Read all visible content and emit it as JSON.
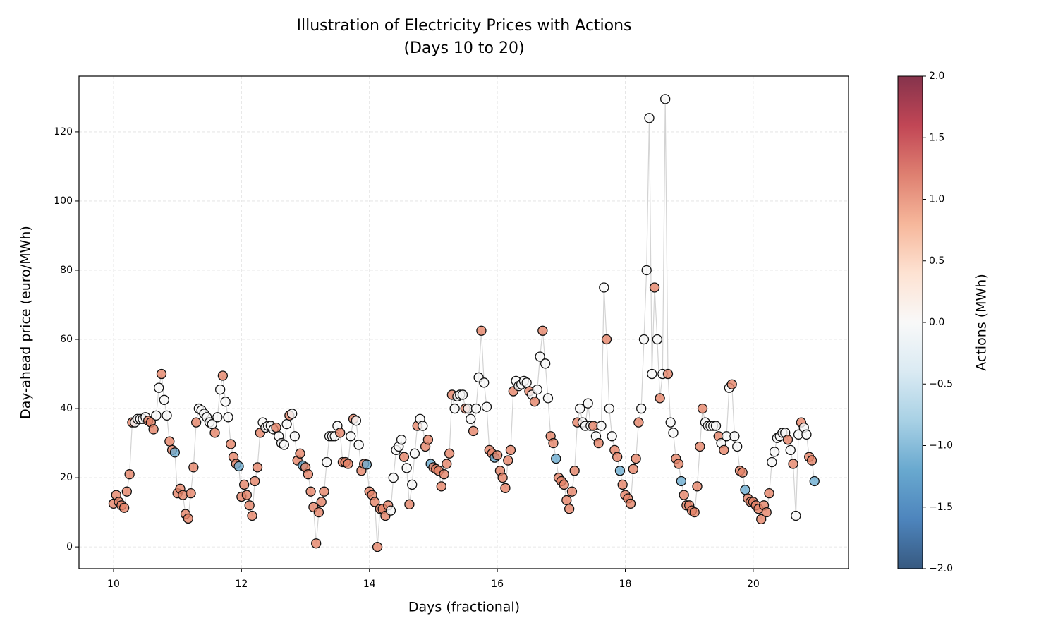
{
  "chart_data": {
    "type": "scatter",
    "title": [
      "Illustration of Electricity Prices with Actions",
      "(Days 10 to 20)"
    ],
    "x_label": "Days (fractional)",
    "y_label": "Day-ahead price (euro/MWh)",
    "colorbar_label": "Actions (MWh)",
    "xlim": [
      9.46,
      21.49
    ],
    "ylim": [
      -6.3,
      136.1
    ],
    "xticks": [
      10,
      12,
      14,
      16,
      18,
      20
    ],
    "yticks": [
      0,
      20,
      40,
      60,
      80,
      100,
      120
    ],
    "clim": [
      -2,
      2
    ],
    "cticks": [
      {
        "value": -2,
        "label": "−2.0"
      },
      {
        "value": -1.5,
        "label": "−1.5"
      },
      {
        "value": -1,
        "label": "−1.0"
      },
      {
        "value": -0.5,
        "label": "−0.5"
      },
      {
        "value": 0,
        "label": "0.0"
      },
      {
        "value": 0.5,
        "label": "0.5"
      },
      {
        "value": 1,
        "label": "1.0"
      },
      {
        "value": 1.5,
        "label": "1.5"
      },
      {
        "value": 2,
        "label": "2.0"
      }
    ],
    "colormap": [
      "#053061",
      "#2166ac",
      "#4393c3",
      "#92c5de",
      "#d1e5f0",
      "#f7f7f7",
      "#fddbc7",
      "#f4a582",
      "#d6604d",
      "#b2182b",
      "#67001f"
    ],
    "marker_alpha": 0.8,
    "line_color": "#d3d3d3",
    "grid": true,
    "x": [
      10,
      10.042,
      10.083,
      10.125,
      10.167,
      10.208,
      10.25,
      10.292,
      10.333,
      10.375,
      10.417,
      10.458,
      10.5,
      10.542,
      10.583,
      10.625,
      10.667,
      10.708,
      10.75,
      10.792,
      10.833,
      10.875,
      10.917,
      10.958,
      11,
      11.042,
      11.083,
      11.125,
      11.167,
      11.208,
      11.25,
      11.292,
      11.333,
      11.375,
      11.417,
      11.458,
      11.5,
      11.542,
      11.583,
      11.625,
      11.667,
      11.708,
      11.75,
      11.792,
      11.833,
      11.875,
      11.917,
      11.958,
      12,
      12.042,
      12.083,
      12.125,
      12.167,
      12.208,
      12.25,
      12.292,
      12.333,
      12.375,
      12.417,
      12.458,
      12.5,
      12.542,
      12.583,
      12.625,
      12.667,
      12.708,
      12.75,
      12.792,
      12.833,
      12.875,
      12.917,
      12.958,
      13,
      13.042,
      13.083,
      13.125,
      13.167,
      13.208,
      13.25,
      13.292,
      13.333,
      13.375,
      13.417,
      13.458,
      13.5,
      13.542,
      13.583,
      13.625,
      13.667,
      13.708,
      13.75,
      13.792,
      13.833,
      13.875,
      13.917,
      13.958,
      14,
      14.042,
      14.083,
      14.125,
      14.167,
      14.208,
      14.25,
      14.292,
      14.333,
      14.375,
      14.417,
      14.458,
      14.5,
      14.542,
      14.583,
      14.625,
      14.667,
      14.708,
      14.75,
      14.792,
      14.833,
      14.875,
      14.917,
      14.958,
      15,
      15.042,
      15.083,
      15.125,
      15.167,
      15.208,
      15.25,
      15.292,
      15.333,
      15.375,
      15.417,
      15.458,
      15.5,
      15.542,
      15.583,
      15.625,
      15.667,
      15.708,
      15.75,
      15.792,
      15.833,
      15.875,
      15.917,
      15.958,
      16,
      16.042,
      16.083,
      16.125,
      16.167,
      16.208,
      16.25,
      16.292,
      16.333,
      16.375,
      16.417,
      16.458,
      16.5,
      16.542,
      16.583,
      16.625,
      16.667,
      16.708,
      16.75,
      16.792,
      16.833,
      16.875,
      16.917,
      16.958,
      17,
      17.042,
      17.083,
      17.125,
      17.167,
      17.208,
      17.25,
      17.292,
      17.333,
      17.375,
      17.417,
      17.458,
      17.5,
      17.542,
      17.583,
      17.625,
      17.667,
      17.708,
      17.75,
      17.792,
      17.833,
      17.875,
      17.917,
      17.958,
      18,
      18.042,
      18.083,
      18.125,
      18.167,
      18.208,
      18.25,
      18.292,
      18.333,
      18.375,
      18.417,
      18.458,
      18.5,
      18.542,
      18.583,
      18.625,
      18.667,
      18.708,
      18.75,
      18.792,
      18.833,
      18.875,
      18.917,
      18.958,
      19,
      19.042,
      19.083,
      19.125,
      19.167,
      19.208,
      19.25,
      19.292,
      19.333,
      19.375,
      19.417,
      19.458,
      19.5,
      19.542,
      19.583,
      19.625,
      19.667,
      19.708,
      19.75,
      19.792,
      19.833,
      19.875,
      19.917,
      19.958,
      20,
      20.042,
      20.083,
      20.125,
      20.167,
      20.208,
      20.25,
      20.292,
      20.333,
      20.375,
      20.417,
      20.458,
      20.5,
      20.542,
      20.583,
      20.625,
      20.667,
      20.708,
      20.75,
      20.792,
      20.833,
      20.875,
      20.917,
      20.958
    ],
    "values": [
      12.5,
      15,
      13,
      12,
      11.3,
      16,
      21,
      36,
      36,
      37,
      37,
      37,
      37.5,
      36.5,
      36,
      34,
      38,
      46,
      50,
      42.5,
      38,
      30.5,
      28,
      27.3,
      15.5,
      16.8,
      15,
      9.5,
      8.2,
      15.5,
      23,
      36,
      40,
      39.5,
      38.5,
      37.5,
      36,
      35.5,
      33,
      37.5,
      45.5,
      49.5,
      42,
      37.5,
      29.7,
      26,
      24,
      23.3,
      14.5,
      18,
      15,
      12,
      9,
      19,
      23,
      33,
      36,
      34.5,
      35,
      35,
      34,
      34.5,
      32,
      30,
      29.5,
      35.5,
      38,
      38.5,
      32,
      25,
      27,
      23.5,
      23,
      21,
      16,
      11.5,
      1,
      10,
      13,
      16,
      24.5,
      32,
      32,
      32,
      35,
      33,
      24.5,
      24.5,
      24,
      32,
      37,
      36.5,
      29.5,
      22,
      24,
      23.8,
      16,
      15,
      13,
      0,
      11,
      11,
      9,
      12,
      10.5,
      20,
      28,
      29,
      31,
      26,
      22.8,
      12.3,
      18,
      27,
      35,
      37,
      35,
      29,
      31,
      24,
      23,
      22.5,
      22,
      17.5,
      21,
      24,
      27,
      44,
      40,
      43.5,
      44,
      44,
      40,
      40,
      37,
      33.5,
      40,
      49,
      62.5,
      47.5,
      40.5,
      28,
      27,
      25.8,
      26.5,
      22,
      20,
      17,
      25,
      28,
      45,
      48,
      46.5,
      47,
      48,
      47.5,
      45,
      44,
      42,
      45.5,
      55,
      62.5,
      53,
      43,
      32,
      30,
      25.5,
      20,
      19,
      18,
      13.5,
      11,
      16,
      22,
      36,
      40,
      36,
      35,
      41.5,
      35,
      35,
      32,
      30,
      35,
      75,
      60,
      40,
      32,
      28,
      26,
      22,
      18,
      15,
      14,
      12.5,
      22.5,
      25.5,
      36,
      40,
      60,
      80,
      124,
      50,
      75,
      60,
      43,
      50,
      129.5,
      50,
      36,
      33,
      25.5,
      24,
      19,
      15,
      12,
      12,
      10.5,
      10,
      17.5,
      29,
      40,
      36,
      35,
      35,
      35,
      35,
      32,
      30,
      28,
      32,
      46,
      47,
      32,
      29,
      22,
      21.5,
      16.5,
      14,
      13,
      13,
      12,
      11,
      8,
      12,
      10,
      15.5,
      24.5,
      27.5,
      31.5,
      32,
      33,
      33,
      31,
      28,
      24,
      9,
      32.5,
      36,
      34.5,
      32.5,
      26,
      25,
      19
    ],
    "actions": [
      1,
      1,
      1,
      1,
      1,
      1,
      1,
      1,
      0,
      0,
      0,
      0,
      0,
      1,
      1,
      1,
      0,
      0,
      1,
      0,
      0,
      1,
      1,
      -1,
      1,
      1,
      1,
      1,
      1,
      1,
      1,
      1,
      0,
      0,
      0,
      0,
      0,
      0,
      1,
      0,
      0,
      1,
      0,
      0,
      1,
      1,
      1,
      -1,
      1,
      1,
      1,
      1,
      1,
      1,
      1,
      1,
      0,
      0,
      0,
      0,
      0,
      1,
      0,
      0,
      0,
      0,
      1,
      0,
      0,
      1,
      1,
      -1,
      1,
      1,
      1,
      1,
      1,
      1,
      1,
      1,
      0,
      0,
      0,
      0,
      0,
      1,
      1,
      1,
      1,
      0,
      1,
      0,
      0,
      1,
      1,
      -1,
      1,
      1,
      1,
      1,
      1,
      1,
      1,
      1,
      0,
      0,
      0,
      0,
      0,
      1,
      0,
      1,
      0,
      0,
      1,
      0,
      0,
      1,
      1,
      -1,
      1,
      1,
      1,
      1,
      1,
      1,
      1,
      1,
      0,
      0,
      0,
      0,
      1,
      0,
      0,
      1,
      0,
      0,
      1,
      0,
      0,
      1,
      1,
      -1,
      1,
      1,
      1,
      1,
      1,
      1,
      1,
      0,
      0,
      0,
      0,
      0,
      1,
      0,
      1,
      0,
      0,
      1,
      0,
      0,
      1,
      1,
      -1,
      1,
      1,
      1,
      1,
      1,
      1,
      1,
      1,
      0,
      0,
      0,
      0,
      0,
      1,
      0,
      1,
      0,
      0,
      1,
      0,
      0,
      1,
      1,
      -1,
      1,
      1,
      1,
      1,
      1,
      1,
      1,
      0,
      0,
      0,
      0,
      0,
      1,
      0,
      1,
      0,
      0,
      1,
      0,
      0,
      1,
      1,
      -1,
      1,
      1,
      1,
      1,
      1,
      1,
      1,
      1,
      0,
      0,
      0,
      0,
      0,
      1,
      0,
      1,
      0,
      0,
      1,
      0,
      0,
      1,
      1,
      -1,
      1,
      1,
      1,
      1,
      1,
      1,
      1,
      1,
      1,
      0,
      0,
      0,
      0,
      0,
      0,
      1,
      0,
      1,
      0,
      0,
      1,
      0,
      0,
      1,
      1,
      -1
    ]
  }
}
